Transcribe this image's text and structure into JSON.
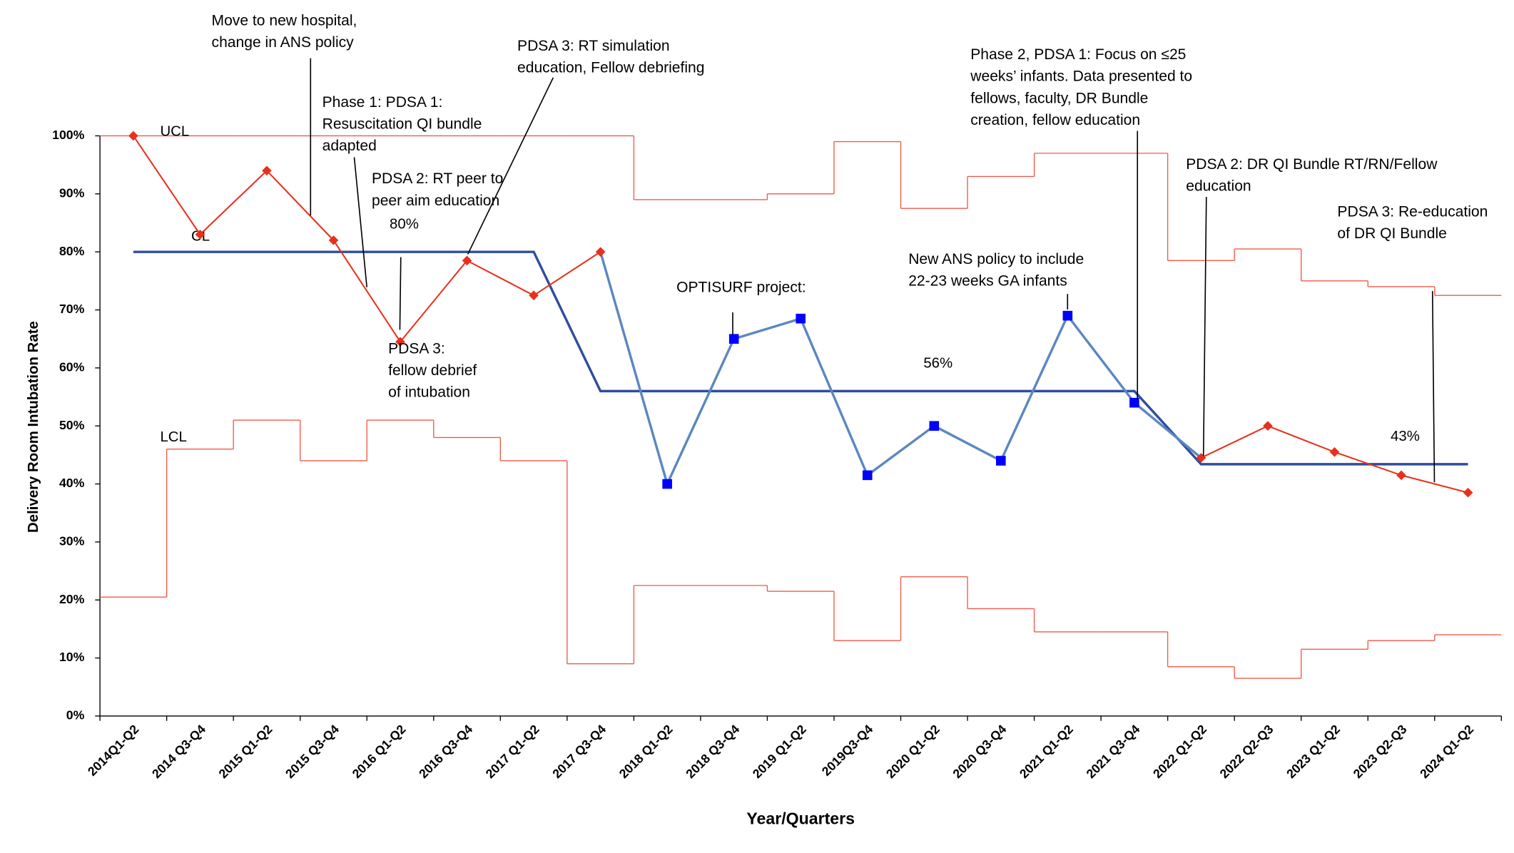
{
  "chart_data": {
    "type": "line",
    "y_label": "Delivery Room Intubation Rate",
    "x_label": "Year/Quarters",
    "categories": [
      "2014Q1-Q2",
      "2014 Q3-Q4",
      "2015 Q1-Q2",
      "2015 Q3-Q4",
      "2016 Q1-Q2",
      "2016 Q3-Q4",
      "2017 Q1-Q2",
      "2017 Q3-Q4",
      "2018 Q1-Q2",
      "2018 Q3-Q4",
      "2019 Q1-Q2",
      "2019Q3-Q4",
      "2020 Q1-Q2",
      "2020 Q3-Q4",
      "2021 Q1-Q2",
      "2021 Q3-Q4",
      "2022 Q1-Q2",
      "2022 Q2-Q3",
      "2023 Q1-Q2",
      "2023 Q2-Q3",
      "2024 Q1-Q2"
    ],
    "series": [
      {
        "color": "#e8301c",
        "marker": "diamond",
        "line_color": "#e8301c",
        "values": [
          100,
          83,
          94,
          82,
          64.5,
          78.5,
          72.5,
          80,
          null,
          null,
          null,
          null,
          null,
          null,
          null,
          null,
          44.5,
          50,
          45.5,
          41.5,
          38.5
        ]
      },
      {
        "color": "#0000ff",
        "marker": "square",
        "line_color": "#5b87c0",
        "values": [
          null,
          null,
          null,
          null,
          null,
          null,
          null,
          null,
          40,
          65,
          68.5,
          41.5,
          50,
          44,
          69,
          54,
          null,
          null,
          null,
          null,
          null
        ]
      }
    ],
    "center_line": {
      "label": "CL",
      "color": "#2e4e9c",
      "values": [
        80,
        80,
        80,
        80,
        80,
        80,
        80,
        56,
        56,
        56,
        56,
        56,
        56,
        56,
        56,
        56,
        43.4,
        43.4,
        43.4,
        43.4,
        43.4
      ],
      "value_labels": [
        null,
        null,
        null,
        null,
        "80%",
        null,
        null,
        null,
        null,
        null,
        null,
        null,
        "56%",
        null,
        null,
        null,
        null,
        null,
        null,
        "43%",
        null
      ]
    },
    "ucl": {
      "label": "UCL",
      "color": "#f05a4a",
      "values": [
        100,
        100,
        100,
        100,
        100,
        100,
        100,
        100,
        89,
        89,
        90,
        99,
        87.5,
        93,
        97,
        97,
        78.5,
        80.5,
        75,
        74,
        72.5
      ]
    },
    "lcl": {
      "label": "LCL",
      "color": "#f05a4a",
      "values": [
        20.5,
        46,
        51,
        44,
        51,
        48,
        44,
        9,
        22.5,
        22.5,
        21.5,
        13,
        24,
        18.5,
        14.5,
        14.5,
        8.5,
        6.5,
        11.5,
        13,
        14
      ]
    },
    "ylim": [
      0,
      100
    ],
    "yticks": [
      {
        "value": 0,
        "label": "0%"
      },
      {
        "value": 10,
        "label": "10%"
      },
      {
        "value": 20,
        "label": "20%"
      },
      {
        "value": 30,
        "label": "30%"
      },
      {
        "value": 40,
        "label": "40%"
      },
      {
        "value": 50,
        "label": "50%"
      },
      {
        "value": 60,
        "label": "60%"
      },
      {
        "value": 70,
        "label": "70%"
      },
      {
        "value": 80,
        "label": "80%"
      },
      {
        "value": 90,
        "label": "90%"
      },
      {
        "value": 100,
        "label": "100%"
      }
    ],
    "grid": false,
    "annotations": [
      {
        "lines": [
          "Move to new hospital,",
          "change in ANS policy"
        ]
      },
      {
        "lines": [
          "Phase 1: PDSA 1:",
          "Resuscitation QI bundle",
          "adapted"
        ]
      },
      {
        "lines": [
          "PDSA 2: RT peer to",
          "peer aim education"
        ]
      },
      {
        "lines": [
          "PDSA 3: RT simulation",
          "education, Fellow debriefing"
        ]
      },
      {
        "lines": [
          "PDSA 3:",
          "fellow debrief",
          "of intubation"
        ]
      },
      {
        "lines": [
          "OPTISURF project:"
        ]
      },
      {
        "lines": [
          "New ANS policy to include",
          "22-23 weeks GA infants"
        ]
      },
      {
        "lines": [
          "Phase 2, PDSA 1: Focus on ≤25",
          "weeks’ infants. Data presented to",
          "fellows, faculty, DR Bundle",
          "creation, fellow education"
        ]
      },
      {
        "lines": [
          "PDSA 2: DR QI Bundle RT/RN/Fellow",
          "education"
        ]
      },
      {
        "lines": [
          "PDSA 3: Re-education",
          "of DR QI Bundle"
        ]
      }
    ]
  }
}
